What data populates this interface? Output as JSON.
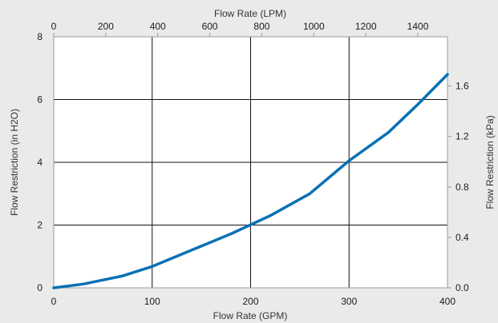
{
  "chart_data": {
    "type": "line",
    "xlabel": "Flow Rate (GPM)",
    "ylabel": "Flow Restriction (in H2O)",
    "x2label": "Flow Rate (LPM)",
    "y2label": "Flow Restriction (kPa)",
    "xlim": [
      0,
      400
    ],
    "ylim": [
      0,
      8
    ],
    "x2lim": [
      0,
      1514
    ],
    "y2lim": [
      0,
      1.99
    ],
    "xticks": [
      "0",
      "100",
      "200",
      "300",
      "400"
    ],
    "yticks": [
      "0",
      "2",
      "4",
      "6",
      "8"
    ],
    "x2ticks": [
      "0",
      "200",
      "400",
      "600",
      "800",
      "1000",
      "1200",
      "1400"
    ],
    "y2ticks": [
      "0.0",
      "0.4",
      "0.8",
      "1.2",
      "1.6"
    ],
    "grid": true,
    "series": [
      {
        "color": "#0a70b5",
        "x": [
          0,
          30,
          70,
          100,
          140,
          180,
          220,
          260,
          300,
          340,
          370,
          400
        ],
        "y": [
          0,
          0.12,
          0.38,
          0.68,
          1.2,
          1.72,
          2.3,
          3.0,
          4.05,
          4.95,
          5.85,
          6.8
        ]
      }
    ]
  }
}
